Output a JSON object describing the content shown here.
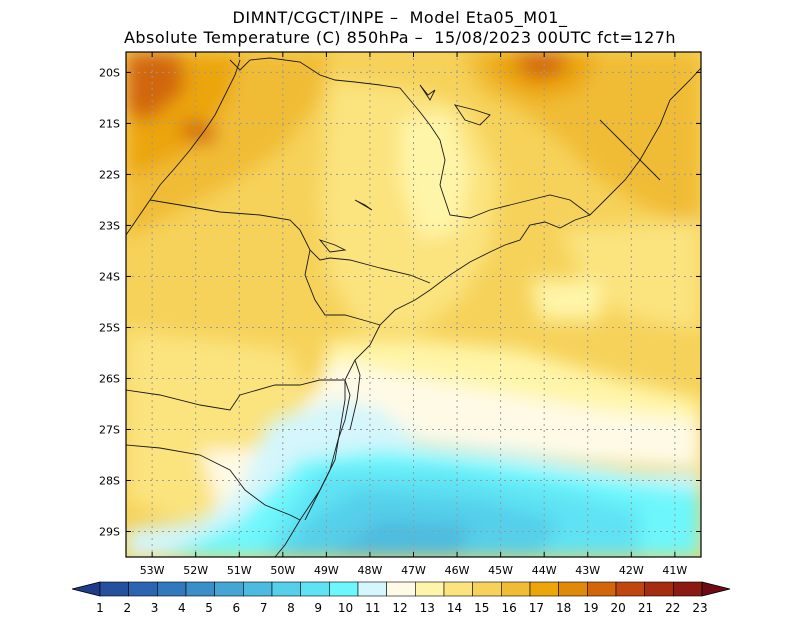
{
  "title": {
    "line1": "DIMNT/CGCT/INPE –  Model Eta05_M01_",
    "line2": "Absolute Temperature (C) 850hPa –  15/08/2023 00UTC fct=127h"
  },
  "map": {
    "lat_labels": [
      "20S",
      "21S",
      "22S",
      "23S",
      "24S",
      "25S",
      "26S",
      "27S",
      "28S",
      "29S"
    ],
    "lon_labels": [
      "53W",
      "52W",
      "51W",
      "50W",
      "49W",
      "48W",
      "47W",
      "46W",
      "45W",
      "44W",
      "43W",
      "42W",
      "41W"
    ],
    "lat_range": [
      -29.5,
      -19.6
    ],
    "lon_range": [
      -53.6,
      -40.4
    ]
  },
  "colorbar": {
    "labels": [
      "1",
      "2",
      "3",
      "4",
      "5",
      "6",
      "7",
      "8",
      "9",
      "10",
      "11",
      "12",
      "13",
      "14",
      "15",
      "16",
      "17",
      "18",
      "19",
      "20",
      "21",
      "22",
      "23"
    ],
    "colors": [
      "#1e3c8c",
      "#24509e",
      "#2b64b0",
      "#3079bc",
      "#3a8fc8",
      "#45a5d4",
      "#4dbbe0",
      "#55cfea",
      "#5ee3f4",
      "#6df7fc",
      "#d4f6fc",
      "#fffae6",
      "#fff5a8",
      "#fbe37e",
      "#f6d25a",
      "#f1bc35",
      "#eca50a",
      "#e08a0a",
      "#d2660a",
      "#bf460f",
      "#a52c10",
      "#8a1a12",
      "#6e0a14"
    ]
  }
}
